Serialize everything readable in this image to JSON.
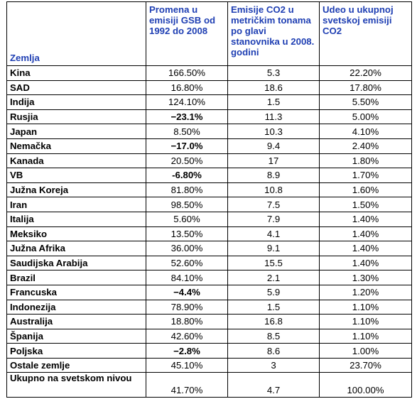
{
  "headers": {
    "country": "Zemlja",
    "change": "Promena u emisiji GSB od 1992 do 2008",
    "per_capita": "Emisije CO2 u metričkim tonama po glavi stanovnika u 2008. godini",
    "share": "Udeo u ukupnoj svetskoj emisiji CO2"
  },
  "rows": [
    {
      "country": "Kina",
      "change": "166.50%",
      "per_capita": "5.3",
      "share": "22.20%",
      "neg": false
    },
    {
      "country": "SAD",
      "change": "16.80%",
      "per_capita": "18.6",
      "share": "17.80%",
      "neg": false
    },
    {
      "country": "Indija",
      "change": "124.10%",
      "per_capita": "1.5",
      "share": "5.50%",
      "neg": false
    },
    {
      "country": "Rusjia",
      "change": "−23.1%",
      "per_capita": "11.3",
      "share": "5.00%",
      "neg": true
    },
    {
      "country": "Japan",
      "change": "8.50%",
      "per_capita": "10.3",
      "share": "4.10%",
      "neg": false
    },
    {
      "country": "Nemačka",
      "change": "−17.0%",
      "per_capita": "9.4",
      "share": "2.40%",
      "neg": true
    },
    {
      "country": "Kanada",
      "change": "20.50%",
      "per_capita": "17",
      "share": "1.80%",
      "neg": false
    },
    {
      "country": "VB",
      "change": "-6.80%",
      "per_capita": "8.9",
      "share": "1.70%",
      "neg": true
    },
    {
      "country": "Južna Koreja",
      "change": "81.80%",
      "per_capita": "10.8",
      "share": "1.60%",
      "neg": false
    },
    {
      "country": "Iran",
      "change": "98.50%",
      "per_capita": "7.5",
      "share": "1.50%",
      "neg": false
    },
    {
      "country": "Italija",
      "change": "5.60%",
      "per_capita": "7.9",
      "share": "1.40%",
      "neg": false
    },
    {
      "country": "Meksiko",
      "change": "13.50%",
      "per_capita": "4.1",
      "share": "1.40%",
      "neg": false
    },
    {
      "country": "Južna Afrika",
      "change": "36.00%",
      "per_capita": "9.1",
      "share": "1.40%",
      "neg": false
    },
    {
      "country": "Saudijska Arabija",
      "change": "52.60%",
      "per_capita": "15.5",
      "share": "1.40%",
      "neg": false
    },
    {
      "country": "Brazil",
      "change": "84.10%",
      "per_capita": "2.1",
      "share": "1.30%",
      "neg": false
    },
    {
      "country": "Francuska",
      "change": "−4.4%",
      "per_capita": "5.9",
      "share": "1.20%",
      "neg": true
    },
    {
      "country": "Indonezija",
      "change": "78.90%",
      "per_capita": "1.5",
      "share": "1.10%",
      "neg": false
    },
    {
      "country": "Australija",
      "change": "18.80%",
      "per_capita": "16.8",
      "share": "1.10%",
      "neg": false
    },
    {
      "country": "Španija",
      "change": "42.60%",
      "per_capita": "8.5",
      "share": "1.10%",
      "neg": false
    },
    {
      "country": "Poljska",
      "change": "−2.8%",
      "per_capita": "8.6",
      "share": "1.00%",
      "neg": true
    },
    {
      "country": "Ostale zemlje",
      "change": "45.10%",
      "per_capita": "3",
      "share": "23.70%",
      "neg": false
    }
  ],
  "total": {
    "country": "Ukupno na svetskom nivou",
    "change": "41.70%",
    "per_capita": "4.7",
    "share": "100.00%"
  },
  "colors": {
    "header_text": "#1f3fb3",
    "border": "#000000"
  }
}
